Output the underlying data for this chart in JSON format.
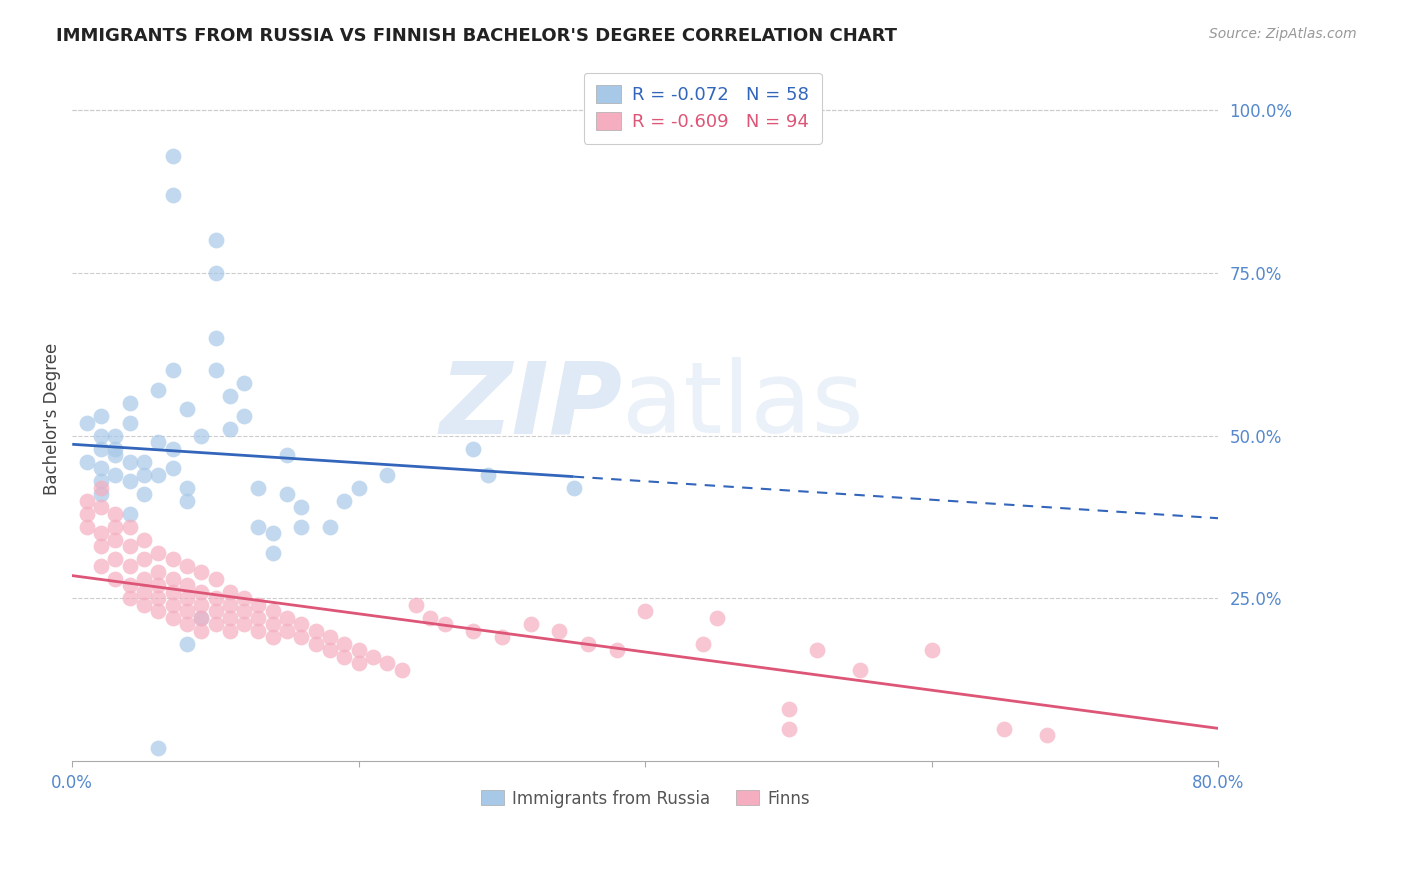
{
  "title": "IMMIGRANTS FROM RUSSIA VS FINNISH BACHELOR'S DEGREE CORRELATION CHART",
  "source": "Source: ZipAtlas.com",
  "ylabel": "Bachelor's Degree",
  "right_ytick_labels": [
    "100.0%",
    "75.0%",
    "50.0%",
    "25.0%"
  ],
  "right_ytick_values": [
    1.0,
    0.75,
    0.5,
    0.25
  ],
  "xlim": [
    0.0,
    0.8
  ],
  "ylim": [
    0.0,
    1.05
  ],
  "legend_r_label1": "R = -0.072   N = 58",
  "legend_r_label2": "R = -0.609   N = 94",
  "legend_label1": "Immigrants from Russia",
  "legend_label2": "Finns",
  "russia_color": "#a8c8e8",
  "finns_color": "#f4aec0",
  "russia_line_color": "#3366bb",
  "finns_line_color": "#dd5577",
  "russia_R": -0.072,
  "finns_R": -0.609,
  "background_color": "#ffffff",
  "grid_color": "#cccccc",
  "russia_scatter": [
    [
      0.02,
      0.48
    ],
    [
      0.01,
      0.52
    ],
    [
      0.02,
      0.5
    ],
    [
      0.02,
      0.45
    ],
    [
      0.02,
      0.43
    ],
    [
      0.01,
      0.46
    ],
    [
      0.03,
      0.47
    ],
    [
      0.03,
      0.44
    ],
    [
      0.02,
      0.53
    ],
    [
      0.02,
      0.41
    ],
    [
      0.03,
      0.5
    ],
    [
      0.03,
      0.48
    ],
    [
      0.04,
      0.46
    ],
    [
      0.04,
      0.43
    ],
    [
      0.04,
      0.55
    ],
    [
      0.04,
      0.52
    ],
    [
      0.05,
      0.44
    ],
    [
      0.05,
      0.46
    ],
    [
      0.05,
      0.41
    ],
    [
      0.04,
      0.38
    ],
    [
      0.06,
      0.49
    ],
    [
      0.06,
      0.44
    ],
    [
      0.06,
      0.57
    ],
    [
      0.07,
      0.6
    ],
    [
      0.07,
      0.48
    ],
    [
      0.07,
      0.45
    ],
    [
      0.08,
      0.54
    ],
    [
      0.08,
      0.42
    ],
    [
      0.08,
      0.4
    ],
    [
      0.08,
      0.18
    ],
    [
      0.09,
      0.5
    ],
    [
      0.09,
      0.22
    ],
    [
      0.1,
      0.6
    ],
    [
      0.1,
      0.65
    ],
    [
      0.1,
      0.8
    ],
    [
      0.1,
      0.75
    ],
    [
      0.11,
      0.56
    ],
    [
      0.11,
      0.51
    ],
    [
      0.12,
      0.58
    ],
    [
      0.12,
      0.53
    ],
    [
      0.13,
      0.42
    ],
    [
      0.13,
      0.36
    ],
    [
      0.14,
      0.35
    ],
    [
      0.14,
      0.32
    ],
    [
      0.15,
      0.47
    ],
    [
      0.15,
      0.41
    ],
    [
      0.16,
      0.36
    ],
    [
      0.16,
      0.39
    ],
    [
      0.18,
      0.36
    ],
    [
      0.19,
      0.4
    ],
    [
      0.2,
      0.42
    ],
    [
      0.22,
      0.44
    ],
    [
      0.28,
      0.48
    ],
    [
      0.29,
      0.44
    ],
    [
      0.35,
      0.42
    ],
    [
      0.06,
      0.02
    ],
    [
      0.07,
      0.93
    ],
    [
      0.07,
      0.87
    ]
  ],
  "finns_scatter": [
    [
      0.01,
      0.4
    ],
    [
      0.01,
      0.38
    ],
    [
      0.01,
      0.36
    ],
    [
      0.02,
      0.42
    ],
    [
      0.02,
      0.39
    ],
    [
      0.02,
      0.35
    ],
    [
      0.02,
      0.33
    ],
    [
      0.02,
      0.3
    ],
    [
      0.03,
      0.38
    ],
    [
      0.03,
      0.36
    ],
    [
      0.03,
      0.34
    ],
    [
      0.03,
      0.31
    ],
    [
      0.03,
      0.28
    ],
    [
      0.04,
      0.36
    ],
    [
      0.04,
      0.33
    ],
    [
      0.04,
      0.3
    ],
    [
      0.04,
      0.27
    ],
    [
      0.04,
      0.25
    ],
    [
      0.05,
      0.34
    ],
    [
      0.05,
      0.31
    ],
    [
      0.05,
      0.28
    ],
    [
      0.05,
      0.26
    ],
    [
      0.05,
      0.24
    ],
    [
      0.06,
      0.32
    ],
    [
      0.06,
      0.29
    ],
    [
      0.06,
      0.27
    ],
    [
      0.06,
      0.25
    ],
    [
      0.06,
      0.23
    ],
    [
      0.07,
      0.31
    ],
    [
      0.07,
      0.28
    ],
    [
      0.07,
      0.26
    ],
    [
      0.07,
      0.24
    ],
    [
      0.07,
      0.22
    ],
    [
      0.08,
      0.3
    ],
    [
      0.08,
      0.27
    ],
    [
      0.08,
      0.25
    ],
    [
      0.08,
      0.23
    ],
    [
      0.08,
      0.21
    ],
    [
      0.09,
      0.29
    ],
    [
      0.09,
      0.26
    ],
    [
      0.09,
      0.24
    ],
    [
      0.09,
      0.22
    ],
    [
      0.09,
      0.2
    ],
    [
      0.1,
      0.28
    ],
    [
      0.1,
      0.25
    ],
    [
      0.1,
      0.23
    ],
    [
      0.1,
      0.21
    ],
    [
      0.11,
      0.26
    ],
    [
      0.11,
      0.24
    ],
    [
      0.11,
      0.22
    ],
    [
      0.11,
      0.2
    ],
    [
      0.12,
      0.25
    ],
    [
      0.12,
      0.23
    ],
    [
      0.12,
      0.21
    ],
    [
      0.13,
      0.24
    ],
    [
      0.13,
      0.22
    ],
    [
      0.13,
      0.2
    ],
    [
      0.14,
      0.23
    ],
    [
      0.14,
      0.21
    ],
    [
      0.14,
      0.19
    ],
    [
      0.15,
      0.22
    ],
    [
      0.15,
      0.2
    ],
    [
      0.16,
      0.21
    ],
    [
      0.16,
      0.19
    ],
    [
      0.17,
      0.2
    ],
    [
      0.17,
      0.18
    ],
    [
      0.18,
      0.19
    ],
    [
      0.18,
      0.17
    ],
    [
      0.19,
      0.18
    ],
    [
      0.19,
      0.16
    ],
    [
      0.2,
      0.17
    ],
    [
      0.2,
      0.15
    ],
    [
      0.21,
      0.16
    ],
    [
      0.22,
      0.15
    ],
    [
      0.23,
      0.14
    ],
    [
      0.24,
      0.24
    ],
    [
      0.25,
      0.22
    ],
    [
      0.26,
      0.21
    ],
    [
      0.28,
      0.2
    ],
    [
      0.3,
      0.19
    ],
    [
      0.32,
      0.21
    ],
    [
      0.34,
      0.2
    ],
    [
      0.36,
      0.18
    ],
    [
      0.38,
      0.17
    ],
    [
      0.4,
      0.23
    ],
    [
      0.44,
      0.18
    ],
    [
      0.45,
      0.22
    ],
    [
      0.5,
      0.05
    ],
    [
      0.5,
      0.08
    ],
    [
      0.52,
      0.17
    ],
    [
      0.55,
      0.14
    ],
    [
      0.6,
      0.17
    ],
    [
      0.65,
      0.05
    ],
    [
      0.68,
      0.04
    ]
  ]
}
